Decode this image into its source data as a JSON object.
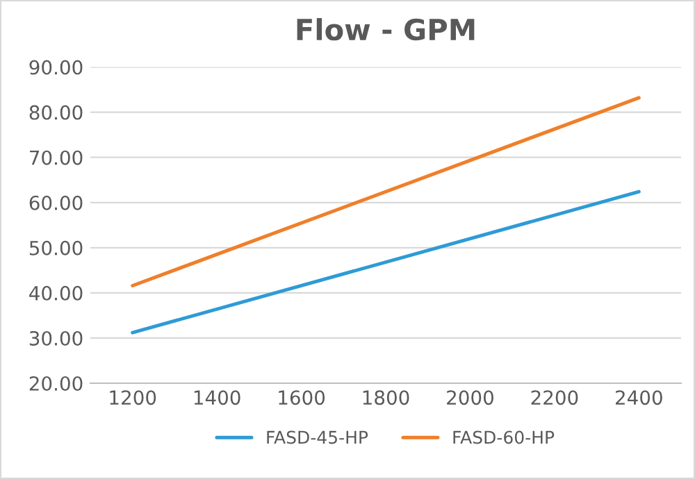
{
  "chart_data": {
    "type": "line",
    "title": "Flow - GPM",
    "series": [
      {
        "name": "FASD-45-HP",
        "color": "#2e9bd6",
        "values": [
          31.2,
          62.4
        ]
      },
      {
        "name": "FASD-60-HP",
        "color": "#f07f2a",
        "values": [
          41.6,
          83.2
        ]
      }
    ],
    "x": [
      1200,
      2400
    ],
    "xlim": [
      1100,
      2500
    ],
    "xticks": [
      1200,
      1400,
      1600,
      1800,
      2000,
      2200,
      2400
    ],
    "ylim": [
      20,
      90
    ],
    "yticks": [
      {
        "value": 20,
        "label": "20.00"
      },
      {
        "value": 30,
        "label": "30.00"
      },
      {
        "value": 40,
        "label": "40.00"
      },
      {
        "value": 50,
        "label": "50.00"
      },
      {
        "value": 60,
        "label": "60.00"
      },
      {
        "value": 70,
        "label": "70.00"
      },
      {
        "value": 80,
        "label": "80.00"
      },
      {
        "value": 90,
        "label": "90.00"
      }
    ],
    "grid": "y",
    "legend": "bottom",
    "marker": "none",
    "line_style": "solid"
  }
}
